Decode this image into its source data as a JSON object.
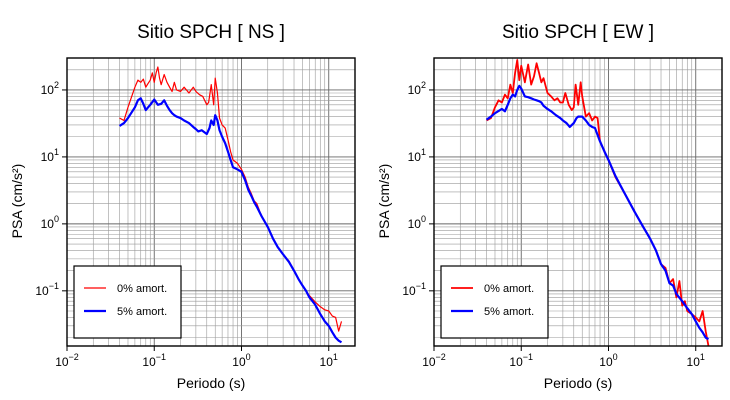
{
  "chart_data": [
    {
      "type": "line",
      "title": "Sitio SPCH [ NS ]",
      "xlabel": "Periodo (s)",
      "ylabel": "PSA (cm/s²)",
      "xscale": "log",
      "yscale": "log",
      "xlim": [
        0.01,
        20
      ],
      "ylim": [
        0.015,
        300
      ],
      "grid": true,
      "legend_position": "bottom-left",
      "x_ticks": [
        {
          "value": 0.01,
          "base": "10",
          "exp": "−2"
        },
        {
          "value": 0.1,
          "base": "10",
          "exp": "−1"
        },
        {
          "value": 1,
          "base": "10",
          "exp": "0"
        },
        {
          "value": 10,
          "base": "10",
          "exp": "1"
        }
      ],
      "y_ticks": [
        {
          "value": 0.1,
          "base": "10",
          "exp": "−1"
        },
        {
          "value": 1,
          "base": "10",
          "exp": "0"
        },
        {
          "value": 10,
          "base": "10",
          "exp": "1"
        },
        {
          "value": 100,
          "base": "10",
          "exp": "2"
        }
      ],
      "series": [
        {
          "name": "0% amort.",
          "color": "#ff0000",
          "stroke": 1.2,
          "points": [
            [
              0.04,
              38
            ],
            [
              0.045,
              35
            ],
            [
              0.05,
              55
            ],
            [
              0.06,
              110
            ],
            [
              0.065,
              140
            ],
            [
              0.07,
              130
            ],
            [
              0.075,
              145
            ],
            [
              0.08,
              110
            ],
            [
              0.085,
              125
            ],
            [
              0.09,
              140
            ],
            [
              0.095,
              180
            ],
            [
              0.1,
              130
            ],
            [
              0.105,
              180
            ],
            [
              0.11,
              220
            ],
            [
              0.115,
              150
            ],
            [
              0.12,
              120
            ],
            [
              0.13,
              170
            ],
            [
              0.14,
              130
            ],
            [
              0.15,
              110
            ],
            [
              0.16,
              95
            ],
            [
              0.17,
              130
            ],
            [
              0.18,
              100
            ],
            [
              0.2,
              95
            ],
            [
              0.22,
              110
            ],
            [
              0.25,
              90
            ],
            [
              0.28,
              110
            ],
            [
              0.3,
              95
            ],
            [
              0.33,
              85
            ],
            [
              0.36,
              80
            ],
            [
              0.4,
              60
            ],
            [
              0.42,
              65
            ],
            [
              0.45,
              120
            ],
            [
              0.48,
              60
            ],
            [
              0.5,
              150
            ],
            [
              0.53,
              90
            ],
            [
              0.56,
              38
            ],
            [
              0.6,
              30
            ],
            [
              0.65,
              27
            ],
            [
              0.7,
              18
            ],
            [
              0.75,
              12
            ],
            [
              0.8,
              9
            ],
            [
              0.9,
              8
            ],
            [
              1,
              6.5
            ],
            [
              1.1,
              5
            ],
            [
              1.2,
              3.5
            ],
            [
              1.3,
              2.8
            ],
            [
              1.4,
              2.2
            ],
            [
              1.5,
              2.0
            ],
            [
              1.7,
              1.3
            ],
            [
              2,
              0.9
            ],
            [
              2.3,
              0.6
            ],
            [
              2.6,
              0.45
            ],
            [
              3,
              0.35
            ],
            [
              3.5,
              0.28
            ],
            [
              4,
              0.2
            ],
            [
              4.5,
              0.15
            ],
            [
              5,
              0.12
            ],
            [
              5.5,
              0.1
            ],
            [
              6,
              0.085
            ],
            [
              7,
              0.068
            ],
            [
              8,
              0.058
            ],
            [
              9,
              0.052
            ],
            [
              10,
              0.05
            ],
            [
              11,
              0.042
            ],
            [
              12,
              0.04
            ],
            [
              13,
              0.025
            ],
            [
              14,
              0.035
            ]
          ]
        },
        {
          "name": "5% amort.",
          "color": "#0000ff",
          "stroke": 2.2,
          "points": [
            [
              0.04,
              29
            ],
            [
              0.045,
              32
            ],
            [
              0.05,
              38
            ],
            [
              0.06,
              55
            ],
            [
              0.065,
              70
            ],
            [
              0.07,
              75
            ],
            [
              0.075,
              62
            ],
            [
              0.08,
              50
            ],
            [
              0.085,
              55
            ],
            [
              0.09,
              60
            ],
            [
              0.1,
              72
            ],
            [
              0.11,
              60
            ],
            [
              0.12,
              62
            ],
            [
              0.13,
              70
            ],
            [
              0.14,
              58
            ],
            [
              0.15,
              50
            ],
            [
              0.16,
              45
            ],
            [
              0.17,
              42
            ],
            [
              0.18,
              40
            ],
            [
              0.2,
              38
            ],
            [
              0.22,
              35
            ],
            [
              0.25,
              32
            ],
            [
              0.28,
              28
            ],
            [
              0.3,
              26
            ],
            [
              0.32,
              24
            ],
            [
              0.35,
              25
            ],
            [
              0.4,
              22
            ],
            [
              0.43,
              27
            ],
            [
              0.45,
              35
            ],
            [
              0.48,
              30
            ],
            [
              0.5,
              42
            ],
            [
              0.53,
              35
            ],
            [
              0.56,
              25
            ],
            [
              0.6,
              20
            ],
            [
              0.65,
              16
            ],
            [
              0.7,
              12
            ],
            [
              0.75,
              9
            ],
            [
              0.8,
              7
            ],
            [
              0.9,
              6.5
            ],
            [
              1,
              6
            ],
            [
              1.1,
              4.5
            ],
            [
              1.2,
              3.2
            ],
            [
              1.3,
              2.6
            ],
            [
              1.4,
              2.1
            ],
            [
              1.5,
              1.8
            ],
            [
              1.7,
              1.3
            ],
            [
              2,
              0.9
            ],
            [
              2.3,
              0.6
            ],
            [
              2.6,
              0.45
            ],
            [
              3,
              0.35
            ],
            [
              3.5,
              0.27
            ],
            [
              4,
              0.2
            ],
            [
              4.5,
              0.15
            ],
            [
              5,
              0.12
            ],
            [
              5.5,
              0.1
            ],
            [
              6,
              0.08
            ],
            [
              7,
              0.062
            ],
            [
              8,
              0.045
            ],
            [
              9,
              0.035
            ],
            [
              10,
              0.03
            ],
            [
              11,
              0.024
            ],
            [
              12,
              0.02
            ],
            [
              13,
              0.018
            ],
            [
              14,
              0.017
            ]
          ]
        }
      ]
    },
    {
      "type": "line",
      "title": "Sitio SPCH [ EW ]",
      "xlabel": "Periodo (s)",
      "ylabel": "PSA (cm/s²)",
      "xscale": "log",
      "yscale": "log",
      "xlim": [
        0.01,
        20
      ],
      "ylim": [
        0.015,
        300
      ],
      "grid": true,
      "legend_position": "bottom-left",
      "x_ticks": [
        {
          "value": 0.01,
          "base": "10",
          "exp": "−2"
        },
        {
          "value": 0.1,
          "base": "10",
          "exp": "−1"
        },
        {
          "value": 1,
          "base": "10",
          "exp": "0"
        },
        {
          "value": 10,
          "base": "10",
          "exp": "1"
        }
      ],
      "y_ticks": [
        {
          "value": 0.1,
          "base": "10",
          "exp": "−1"
        },
        {
          "value": 1,
          "base": "10",
          "exp": "0"
        },
        {
          "value": 10,
          "base": "10",
          "exp": "1"
        },
        {
          "value": 100,
          "base": "10",
          "exp": "2"
        }
      ],
      "series": [
        {
          "name": "0% amort.",
          "color": "#ff0000",
          "stroke": 1.8,
          "points": [
            [
              0.04,
              35
            ],
            [
              0.045,
              38
            ],
            [
              0.05,
              55
            ],
            [
              0.055,
              70
            ],
            [
              0.06,
              65
            ],
            [
              0.065,
              85
            ],
            [
              0.07,
              75
            ],
            [
              0.075,
              120
            ],
            [
              0.08,
              90
            ],
            [
              0.085,
              180
            ],
            [
              0.09,
              280
            ],
            [
              0.095,
              140
            ],
            [
              0.1,
              230
            ],
            [
              0.11,
              130
            ],
            [
              0.12,
              240
            ],
            [
              0.13,
              120
            ],
            [
              0.14,
              160
            ],
            [
              0.15,
              250
            ],
            [
              0.16,
              180
            ],
            [
              0.17,
              130
            ],
            [
              0.18,
              150
            ],
            [
              0.2,
              90
            ],
            [
              0.22,
              80
            ],
            [
              0.24,
              70
            ],
            [
              0.26,
              75
            ],
            [
              0.28,
              65
            ],
            [
              0.3,
              65
            ],
            [
              0.32,
              90
            ],
            [
              0.35,
              60
            ],
            [
              0.38,
              50
            ],
            [
              0.4,
              55
            ],
            [
              0.42,
              120
            ],
            [
              0.45,
              60
            ],
            [
              0.48,
              130
            ],
            [
              0.5,
              80
            ],
            [
              0.55,
              40
            ],
            [
              0.6,
              45
            ],
            [
              0.65,
              35
            ],
            [
              0.7,
              40
            ],
            [
              0.75,
              38
            ],
            [
              0.8,
              17
            ],
            [
              0.9,
              12
            ],
            [
              1,
              9
            ],
            [
              1.2,
              5
            ],
            [
              1.5,
              3
            ],
            [
              2,
              1.5
            ],
            [
              2.5,
              0.9
            ],
            [
              3,
              0.6
            ],
            [
              3.5,
              0.4
            ],
            [
              4,
              0.25
            ],
            [
              4.5,
              0.22
            ],
            [
              5,
              0.13
            ],
            [
              5.5,
              0.15
            ],
            [
              6,
              0.08
            ],
            [
              6.5,
              0.14
            ],
            [
              7,
              0.06
            ],
            [
              7.5,
              0.07
            ],
            [
              8,
              0.05
            ],
            [
              9,
              0.045
            ],
            [
              10,
              0.04
            ],
            [
              11,
              0.035
            ],
            [
              12,
              0.05
            ],
            [
              13,
              0.025
            ],
            [
              14,
              0.015
            ]
          ]
        },
        {
          "name": "5% amort.",
          "color": "#0000ff",
          "stroke": 2.2,
          "points": [
            [
              0.04,
              36
            ],
            [
              0.045,
              40
            ],
            [
              0.05,
              45
            ],
            [
              0.06,
              52
            ],
            [
              0.065,
              48
            ],
            [
              0.07,
              60
            ],
            [
              0.075,
              75
            ],
            [
              0.08,
              85
            ],
            [
              0.085,
              80
            ],
            [
              0.09,
              100
            ],
            [
              0.095,
              115
            ],
            [
              0.1,
              105
            ],
            [
              0.11,
              80
            ],
            [
              0.12,
              78
            ],
            [
              0.13,
              75
            ],
            [
              0.14,
              72
            ],
            [
              0.15,
              70
            ],
            [
              0.16,
              68
            ],
            [
              0.17,
              65
            ],
            [
              0.18,
              58
            ],
            [
              0.2,
              52
            ],
            [
              0.22,
              48
            ],
            [
              0.25,
              42
            ],
            [
              0.28,
              38
            ],
            [
              0.3,
              35
            ],
            [
              0.33,
              32
            ],
            [
              0.36,
              28
            ],
            [
              0.4,
              32
            ],
            [
              0.43,
              38
            ],
            [
              0.45,
              40
            ],
            [
              0.5,
              40
            ],
            [
              0.55,
              35
            ],
            [
              0.6,
              30
            ],
            [
              0.65,
              28
            ],
            [
              0.7,
              27
            ],
            [
              0.8,
              17
            ],
            [
              0.9,
              12
            ],
            [
              1,
              9
            ],
            [
              1.2,
              5.2
            ],
            [
              1.5,
              3
            ],
            [
              2,
              1.5
            ],
            [
              2.5,
              0.9
            ],
            [
              3,
              0.6
            ],
            [
              3.5,
              0.4
            ],
            [
              4,
              0.25
            ],
            [
              4.5,
              0.2
            ],
            [
              5,
              0.13
            ],
            [
              5.5,
              0.12
            ],
            [
              6,
              0.09
            ],
            [
              7,
              0.07
            ],
            [
              8,
              0.055
            ],
            [
              9,
              0.045
            ],
            [
              10,
              0.035
            ],
            [
              11,
              0.028
            ],
            [
              12,
              0.024
            ],
            [
              13,
              0.02
            ],
            [
              14,
              0.019
            ]
          ]
        }
      ]
    }
  ]
}
